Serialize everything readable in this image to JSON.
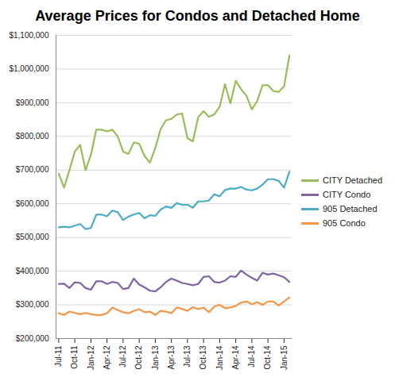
{
  "chart_data": {
    "type": "line",
    "title": "Average Prices for Condos and Detached Home",
    "categories": [
      "Jul-11",
      null,
      null,
      "Oct-11",
      null,
      null,
      "Jan-12",
      null,
      null,
      "Apr-12",
      null,
      null,
      "Jul-12",
      null,
      null,
      "Oct-12",
      null,
      null,
      "Jan-13",
      null,
      null,
      "Apr-13",
      null,
      null,
      "Jul-13",
      null,
      null,
      "Oct-13",
      null,
      null,
      "Jan-14",
      null,
      null,
      "Apr-14",
      null,
      null,
      "Jul-14",
      null,
      null,
      "Oct-14",
      null,
      null,
      "Jan-15",
      null
    ],
    "series": [
      {
        "name": "CITY Detached",
        "color": "#9bbb59",
        "values": [
          690000,
          648000,
          700000,
          755000,
          775000,
          700000,
          745000,
          820000,
          820000,
          815000,
          820000,
          800000,
          755000,
          748000,
          782000,
          778000,
          742000,
          722000,
          765000,
          822000,
          848000,
          852000,
          865000,
          868000,
          795000,
          785000,
          857000,
          875000,
          858000,
          865000,
          888000,
          955000,
          898000,
          965000,
          940000,
          920000,
          880000,
          905000,
          952000,
          952000,
          935000,
          932000,
          948000,
          1040000
        ]
      },
      {
        "name": "CITY Condo",
        "color": "#8064a2",
        "values": [
          362000,
          363000,
          350000,
          367000,
          365000,
          350000,
          345000,
          370000,
          370000,
          362000,
          368000,
          365000,
          347000,
          350000,
          378000,
          360000,
          352000,
          342000,
          340000,
          352000,
          368000,
          378000,
          372000,
          365000,
          362000,
          358000,
          362000,
          383000,
          385000,
          368000,
          366000,
          372000,
          385000,
          383000,
          402000,
          390000,
          380000,
          372000,
          395000,
          390000,
          393000,
          388000,
          382000,
          368000
        ]
      },
      {
        "name": "905 Detached",
        "color": "#4bacc6",
        "values": [
          530000,
          532000,
          530000,
          535000,
          540000,
          525000,
          528000,
          568000,
          568000,
          563000,
          580000,
          575000,
          552000,
          562000,
          568000,
          573000,
          557000,
          566000,
          564000,
          583000,
          592000,
          588000,
          602000,
          597000,
          597000,
          588000,
          607000,
          607000,
          610000,
          628000,
          622000,
          641000,
          645000,
          645000,
          650000,
          642000,
          640000,
          645000,
          657000,
          673000,
          673000,
          668000,
          648000,
          695000
        ]
      },
      {
        "name": "905 Condo",
        "color": "#f79646",
        "values": [
          275000,
          270000,
          280000,
          276000,
          272000,
          276000,
          272000,
          270000,
          270000,
          275000,
          292000,
          285000,
          278000,
          275000,
          282000,
          287000,
          278000,
          280000,
          270000,
          282000,
          280000,
          275000,
          292000,
          288000,
          282000,
          293000,
          287000,
          292000,
          278000,
          295000,
          300000,
          290000,
          292000,
          297000,
          307000,
          310000,
          302000,
          308000,
          300000,
          310000,
          310000,
          298000,
          310000,
          322000
        ]
      }
    ],
    "ylim": [
      200000,
      1100000
    ],
    "yticks": [
      {
        "value": 200000,
        "label": "$200,000"
      },
      {
        "value": 300000,
        "label": "$300,000"
      },
      {
        "value": 400000,
        "label": "$400,000"
      },
      {
        "value": 500000,
        "label": "$500,000"
      },
      {
        "value": 600000,
        "label": "$600,000"
      },
      {
        "value": 700000,
        "label": "$700,000"
      },
      {
        "value": 800000,
        "label": "$800,000"
      },
      {
        "value": 900000,
        "label": "$900,000"
      },
      {
        "value": 1000000,
        "label": "$1,000,000"
      },
      {
        "value": 1100000,
        "label": "$1,100,000"
      }
    ],
    "grid": true,
    "legend": "right"
  }
}
